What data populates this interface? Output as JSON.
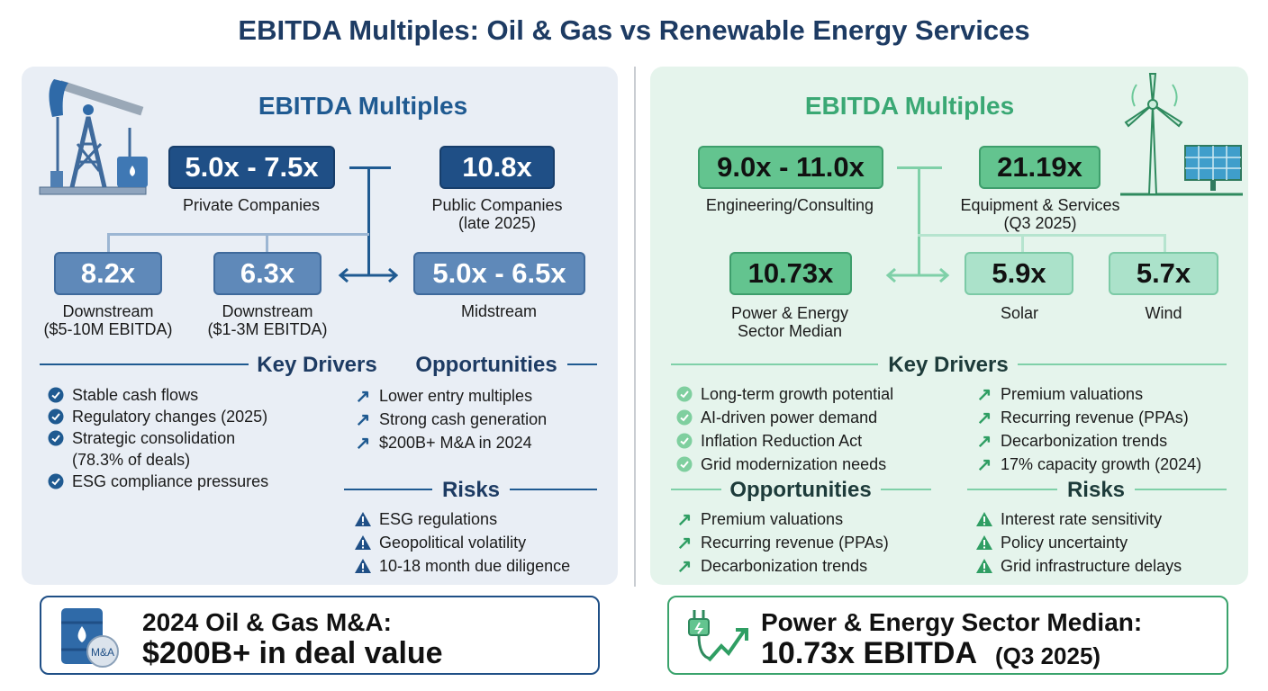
{
  "title": "EBITDA Multiples: Oil & Gas vs Renewable Energy Services",
  "oil_gas": {
    "heading": "EBITDA Multiples",
    "private": {
      "value": "5.0x - 7.5x",
      "label": "Private Companies"
    },
    "public": {
      "value": "10.8x",
      "label": "Public Companies",
      "sub": "(late 2025)"
    },
    "downstream_large": {
      "value": "8.2x",
      "label": "Downstream",
      "sub": "($5-10M EBITDA)"
    },
    "downstream_small": {
      "value": "6.3x",
      "label": "Downstream",
      "sub": "($1-3M EBITDA)"
    },
    "midstream": {
      "value": "5.0x - 6.5x",
      "label": "Midstream"
    },
    "key_drivers_title": "Key Drivers",
    "opportunities_title": "Opportunities",
    "risks_title": "Risks",
    "key_drivers": [
      "Stable cash flows",
      "Regulatory changes (2025)",
      "Strategic consolidation",
      "(78.3% of deals)",
      "ESG compliance pressures"
    ],
    "opportunities": [
      "Lower entry multiples",
      "Strong cash generation",
      "$200B+ M&A in 2024"
    ],
    "risks": [
      "ESG regulations",
      "Geopolitical volatility",
      "10-18 month due diligence"
    ],
    "callout_line1": "2024 Oil & Gas M&A:",
    "callout_line2": "$200B+ in deal value",
    "callout_icon_text": "M&A",
    "accent": "#1f4f86"
  },
  "renewable": {
    "heading": "EBITDA Multiples",
    "engineering": {
      "value": "9.0x - 11.0x",
      "label": "Engineering/Consulting"
    },
    "equipment": {
      "value": "21.19x",
      "label": "Equipment & Services",
      "sub": "(Q3 2025)"
    },
    "median": {
      "value": "10.73x",
      "label": "Power & Energy",
      "sub": "Sector Median"
    },
    "solar": {
      "value": "5.9x",
      "label": "Solar"
    },
    "wind": {
      "value": "5.7x",
      "label": "Wind"
    },
    "key_drivers_title": "Key Drivers",
    "opportunities_title": "Opportunities",
    "risks_title": "Risks",
    "key_drivers": [
      "Long-term growth potential",
      "AI-driven power demand",
      "Inflation Reduction Act",
      "Grid modernization needs"
    ],
    "key_drivers_right": [
      "Premium valuations",
      "Recurring revenue (PPAs)",
      "Decarbonization trends",
      "17% capacity growth (2024)"
    ],
    "opportunities": [
      "Premium valuations",
      "Recurring revenue (PPAs)",
      "Decarbonization trends"
    ],
    "risks": [
      "Interest rate sensitivity",
      "Policy uncertainty",
      "Grid infrastructure delays"
    ],
    "callout_line1": "Power & Energy Sector Median:",
    "callout_line2": "10.73x EBITDA",
    "callout_line2_suffix": "(Q3 2025)",
    "accent": "#3aa36c"
  }
}
